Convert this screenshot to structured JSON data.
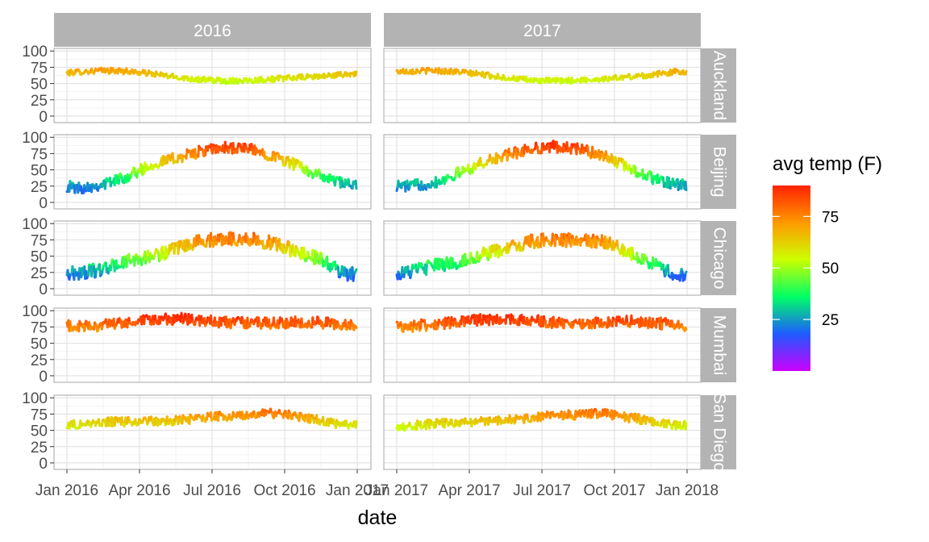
{
  "chart_data": {
    "type": "line",
    "facet_rows": [
      "Auckland",
      "Beijing",
      "Chicago",
      "Mumbai",
      "San Diego"
    ],
    "facet_cols": [
      "2016",
      "2017"
    ],
    "xlabel": "date",
    "ylabel": "",
    "y_ticks": [
      0,
      25,
      50,
      75,
      100
    ],
    "ylim": [
      -10,
      104
    ],
    "x_ticks": [
      {
        "label": "Jan 2016",
        "month": 0,
        "panel": "2016"
      },
      {
        "label": "Apr 2016",
        "month": 3,
        "panel": "2016"
      },
      {
        "label": "Jul 2016",
        "month": 6,
        "panel": "2016"
      },
      {
        "label": "Oct 2016",
        "month": 9,
        "panel": "2016"
      },
      {
        "label": "Jan 2017",
        "month": 12,
        "panel": "2016"
      },
      {
        "label": "Jan 2017",
        "month": 0,
        "panel": "2017"
      },
      {
        "label": "Apr 2017",
        "month": 3,
        "panel": "2017"
      },
      {
        "label": "Jul 2017",
        "month": 6,
        "panel": "2017"
      },
      {
        "label": "Oct 2017",
        "month": 9,
        "panel": "2017"
      },
      {
        "label": "Jan 2018",
        "month": 12,
        "panel": "2017"
      }
    ],
    "color_scale": {
      "title": "avg temp (F)",
      "min": 0,
      "max": 90,
      "breaks": [
        25,
        50,
        75
      ],
      "colors": [
        "#cc00ff",
        "#1e5bff",
        "#00ff66",
        "#ccff00",
        "#ff9900",
        "#ff2200"
      ]
    },
    "series": [
      {
        "city": "Auckland",
        "year": "2016",
        "monthly_avg": [
          68,
          70,
          69,
          65,
          60,
          56,
          54,
          55,
          57,
          59,
          61,
          64
        ],
        "spread": 5
      },
      {
        "city": "Auckland",
        "year": "2017",
        "monthly_avg": [
          69,
          70,
          68,
          64,
          59,
          55,
          54,
          55,
          57,
          60,
          63,
          68
        ],
        "spread": 5
      },
      {
        "city": "Beijing",
        "year": "2016",
        "monthly_avg": [
          22,
          28,
          40,
          58,
          68,
          78,
          84,
          82,
          72,
          57,
          40,
          28
        ],
        "spread": 10
      },
      {
        "city": "Beijing",
        "year": "2017",
        "monthly_avg": [
          25,
          30,
          44,
          60,
          72,
          82,
          86,
          82,
          72,
          55,
          38,
          27
        ],
        "spread": 10
      },
      {
        "city": "Chicago",
        "year": "2016",
        "monthly_avg": [
          24,
          30,
          42,
          50,
          60,
          73,
          77,
          76,
          70,
          57,
          45,
          22
        ],
        "spread": 12
      },
      {
        "city": "Chicago",
        "year": "2017",
        "monthly_avg": [
          26,
          35,
          40,
          52,
          60,
          72,
          76,
          73,
          72,
          58,
          40,
          20
        ],
        "spread": 12
      },
      {
        "city": "Mumbai",
        "year": "2016",
        "monthly_avg": [
          75,
          78,
          81,
          85,
          88,
          85,
          82,
          81,
          81,
          82,
          82,
          78
        ],
        "spread": 10
      },
      {
        "city": "Mumbai",
        "year": "2017",
        "monthly_avg": [
          76,
          79,
          82,
          86,
          87,
          85,
          82,
          81,
          82,
          84,
          82,
          78
        ],
        "spread": 10
      },
      {
        "city": "San Diego",
        "year": "2016",
        "monthly_avg": [
          59,
          63,
          63,
          64,
          65,
          69,
          72,
          74,
          76,
          72,
          65,
          58
        ],
        "spread": 8
      },
      {
        "city": "San Diego",
        "year": "2017",
        "monthly_avg": [
          57,
          60,
          62,
          64,
          66,
          69,
          73,
          74,
          76,
          70,
          65,
          58
        ],
        "spread": 8
      }
    ]
  }
}
